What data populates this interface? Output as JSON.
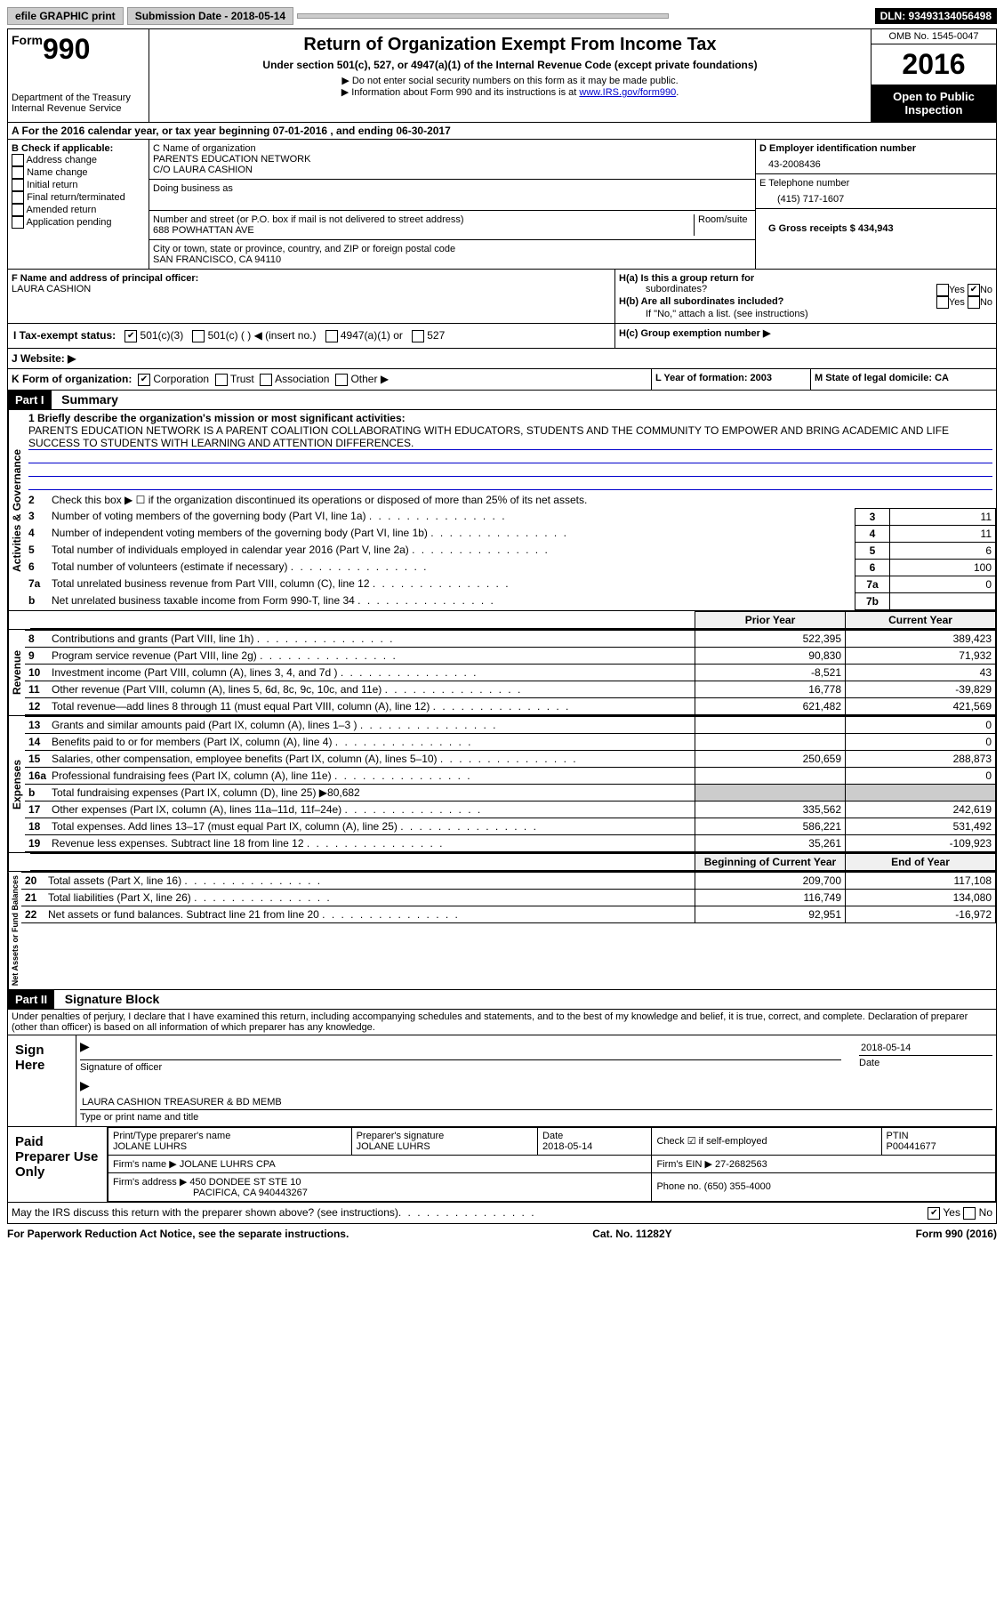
{
  "topbar": {
    "efile": "efile GRAPHIC print",
    "submission_label": "Submission Date - 2018-05-14",
    "dln": "DLN: 93493134056498"
  },
  "header": {
    "form_label": "Form",
    "form_num": "990",
    "dept1": "Department of the Treasury",
    "dept2": "Internal Revenue Service",
    "title": "Return of Organization Exempt From Income Tax",
    "subtitle": "Under section 501(c), 527, or 4947(a)(1) of the Internal Revenue Code (except private foundations)",
    "note1": "▶ Do not enter social security numbers on this form as it may be made public.",
    "note2_pre": "▶ Information about Form 990 and its instructions is at ",
    "note2_link": "www.IRS.gov/form990",
    "omb": "OMB No. 1545-0047",
    "year": "2016",
    "public1": "Open to Public",
    "public2": "Inspection"
  },
  "section_a": "A  For the 2016 calendar year, or tax year beginning 07-01-2016   , and ending 06-30-2017",
  "section_b": {
    "title": "B Check if applicable:",
    "items": [
      "Address change",
      "Name change",
      "Initial return",
      "Final return/terminated",
      "Amended return",
      "Application pending"
    ]
  },
  "section_c": {
    "name_label": "C Name of organization",
    "name1": "PARENTS EDUCATION NETWORK",
    "name2": "C/O LAURA CASHION",
    "dba": "Doing business as",
    "addr_label": "Number and street (or P.O. box if mail is not delivered to street address)",
    "room": "Room/suite",
    "addr": "688 POWHATTAN AVE",
    "city_label": "City or town, state or province, country, and ZIP or foreign postal code",
    "city": "SAN FRANCISCO, CA  94110"
  },
  "section_d": {
    "ein_label": "D Employer identification number",
    "ein": "43-2008436",
    "tel_label": "E Telephone number",
    "tel": "(415) 717-1607",
    "gross_label": "G Gross receipts $ 434,943"
  },
  "section_f": {
    "label": "F  Name and address of principal officer:",
    "name": "LAURA CASHION"
  },
  "section_h": {
    "ha": "H(a)  Is this a group return for",
    "ha2": "subordinates?",
    "hb": "H(b) Are all subordinates included?",
    "hb2": "If \"No,\" attach a list. (see instructions)",
    "hc": "H(c)  Group exemption number ▶",
    "yes": "Yes",
    "no": "No"
  },
  "section_i": {
    "label": "I  Tax-exempt status:",
    "o1": "501(c)(3)",
    "o2": "501(c) (   ) ◀ (insert no.)",
    "o3": "4947(a)(1) or",
    "o4": "527"
  },
  "section_j": "J  Website: ▶",
  "section_k": {
    "label": "K Form of organization:",
    "o1": "Corporation",
    "o2": "Trust",
    "o3": "Association",
    "o4": "Other ▶"
  },
  "section_l": "L Year of formation: 2003",
  "section_m": "M State of legal domicile: CA",
  "part1": {
    "header": "Part I",
    "title": "Summary",
    "l1a": "1  Briefly describe the organization's mission or most significant activities:",
    "l1b": "PARENTS EDUCATION NETWORK IS A PARENT COALITION COLLABORATING WITH EDUCATORS, STUDENTS AND THE COMMUNITY TO EMPOWER AND BRING ACADEMIC AND LIFE SUCCESS TO STUDENTS WITH LEARNING AND ATTENTION DIFFERENCES.",
    "l2": "Check this box ▶ ☐  if the organization discontinued its operations or disposed of more than 25% of its net assets.",
    "lines_ag": [
      {
        "n": "3",
        "txt": "Number of voting members of the governing body (Part VI, line 1a)",
        "box": "3",
        "val": "11"
      },
      {
        "n": "4",
        "txt": "Number of independent voting members of the governing body (Part VI, line 1b)",
        "box": "4",
        "val": "11"
      },
      {
        "n": "5",
        "txt": "Total number of individuals employed in calendar year 2016 (Part V, line 2a)",
        "box": "5",
        "val": "6"
      },
      {
        "n": "6",
        "txt": "Total number of volunteers (estimate if necessary)",
        "box": "6",
        "val": "100"
      },
      {
        "n": "7a",
        "txt": "Total unrelated business revenue from Part VIII, column (C), line 12",
        "box": "7a",
        "val": "0"
      },
      {
        "n": "b",
        "txt": "Net unrelated business taxable income from Form 990-T, line 34",
        "box": "7b",
        "val": ""
      }
    ],
    "col_prior": "Prior Year",
    "col_current": "Current Year",
    "revenue_label": "Revenue",
    "revenue": [
      {
        "n": "8",
        "txt": "Contributions and grants (Part VIII, line 1h)",
        "p": "522,395",
        "c": "389,423"
      },
      {
        "n": "9",
        "txt": "Program service revenue (Part VIII, line 2g)",
        "p": "90,830",
        "c": "71,932"
      },
      {
        "n": "10",
        "txt": "Investment income (Part VIII, column (A), lines 3, 4, and 7d )",
        "p": "-8,521",
        "c": "43"
      },
      {
        "n": "11",
        "txt": "Other revenue (Part VIII, column (A), lines 5, 6d, 8c, 9c, 10c, and 11e)",
        "p": "16,778",
        "c": "-39,829"
      },
      {
        "n": "12",
        "txt": "Total revenue—add lines 8 through 11 (must equal Part VIII, column (A), line 12)",
        "p": "621,482",
        "c": "421,569"
      }
    ],
    "expenses_label": "Expenses",
    "expenses": [
      {
        "n": "13",
        "txt": "Grants and similar amounts paid (Part IX, column (A), lines 1–3 )",
        "p": "",
        "c": "0"
      },
      {
        "n": "14",
        "txt": "Benefits paid to or for members (Part IX, column (A), line 4)",
        "p": "",
        "c": "0"
      },
      {
        "n": "15",
        "txt": "Salaries, other compensation, employee benefits (Part IX, column (A), lines 5–10)",
        "p": "250,659",
        "c": "288,873"
      },
      {
        "n": "16a",
        "txt": "Professional fundraising fees (Part IX, column (A), line 11e)",
        "p": "",
        "c": "0"
      },
      {
        "n": "b",
        "txt": "Total fundraising expenses (Part IX, column (D), line 25) ▶80,682",
        "p": "shaded",
        "c": "shaded"
      },
      {
        "n": "17",
        "txt": "Other expenses (Part IX, column (A), lines 11a–11d, 11f–24e)",
        "p": "335,562",
        "c": "242,619"
      },
      {
        "n": "18",
        "txt": "Total expenses. Add lines 13–17 (must equal Part IX, column (A), line 25)",
        "p": "586,221",
        "c": "531,492"
      },
      {
        "n": "19",
        "txt": "Revenue less expenses. Subtract line 18 from line 12",
        "p": "35,261",
        "c": "-109,923"
      }
    ],
    "net_label": "Net Assets or Fund Balances",
    "col_begin": "Beginning of Current Year",
    "col_end": "End of Year",
    "net": [
      {
        "n": "20",
        "txt": "Total assets (Part X, line 16)",
        "p": "209,700",
        "c": "117,108"
      },
      {
        "n": "21",
        "txt": "Total liabilities (Part X, line 26)",
        "p": "116,749",
        "c": "134,080"
      },
      {
        "n": "22",
        "txt": "Net assets or fund balances. Subtract line 21 from line 20",
        "p": "92,951",
        "c": "-16,972"
      }
    ],
    "ag_label": "Activities & Governance"
  },
  "part2": {
    "header": "Part II",
    "title": "Signature Block",
    "penalty": "Under penalties of perjury, I declare that I have examined this return, including accompanying schedules and statements, and to the best of my knowledge and belief, it is true, correct, and complete. Declaration of preparer (other than officer) is based on all information of which preparer has any knowledge.",
    "sign_here": "Sign Here",
    "sig_officer": "Signature of officer",
    "sig_date": "2018-05-14",
    "date_lbl": "Date",
    "officer_name": "LAURA CASHION  TREASURER & BD MEMB",
    "type_name": "Type or print name and title",
    "paid": "Paid Preparer Use Only",
    "prep_name_lbl": "Print/Type preparer's name",
    "prep_name": "JOLANE LUHRS",
    "prep_sig_lbl": "Preparer's signature",
    "prep_sig": "JOLANE LUHRS",
    "prep_date_lbl": "Date",
    "prep_date": "2018-05-14",
    "check_lbl": "Check ☑ if self-employed",
    "ptin_lbl": "PTIN",
    "ptin": "P00441677",
    "firm_name_lbl": "Firm's name     ▶",
    "firm_name": "JOLANE LUHRS CPA",
    "firm_ein_lbl": "Firm's EIN ▶",
    "firm_ein": "27-2682563",
    "firm_addr_lbl": "Firm's address ▶",
    "firm_addr1": "450 DONDEE ST STE 10",
    "firm_addr2": "PACIFICA, CA  940443267",
    "phone_lbl": "Phone no.",
    "phone": "(650) 355-4000",
    "discuss": "May the IRS discuss this return with the preparer shown above? (see instructions)"
  },
  "footer": {
    "left": "For Paperwork Reduction Act Notice, see the separate instructions.",
    "center": "Cat. No. 11282Y",
    "right": "Form 990 (2016)"
  }
}
